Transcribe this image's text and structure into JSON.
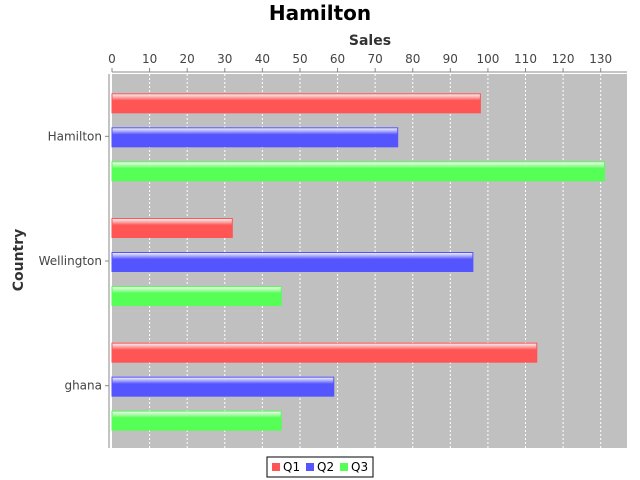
{
  "chart_data": {
    "type": "bar",
    "orientation": "horizontal",
    "title": "Hamilton",
    "xlabel": "Sales",
    "ylabel": "Country",
    "categories": [
      "Hamilton",
      "Wellington",
      "ghana"
    ],
    "series": [
      {
        "name": "Q1",
        "color": "#ff5555",
        "values": [
          98,
          32,
          113
        ]
      },
      {
        "name": "Q2",
        "color": "#5555ff",
        "values": [
          76,
          96,
          59
        ]
      },
      {
        "name": "Q3",
        "color": "#55ff55",
        "values": [
          131,
          45,
          45
        ]
      }
    ],
    "xlim": [
      0,
      137
    ],
    "xticks": [
      0,
      10,
      20,
      30,
      40,
      50,
      60,
      70,
      80,
      90,
      100,
      110,
      120,
      130
    ],
    "x_axis_position": "top",
    "grid": true,
    "legend": "bottom",
    "plot_background": "#c0c0c0"
  }
}
